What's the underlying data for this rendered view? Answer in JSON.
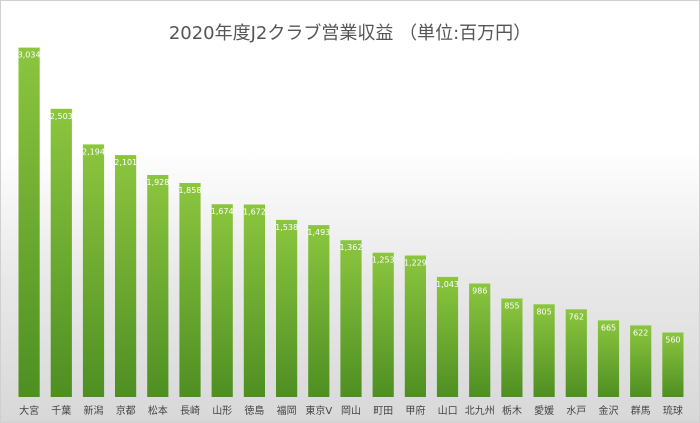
{
  "chart_data": {
    "type": "bar",
    "title": "2020年度J2クラブ営業収益 （単位:百万円）",
    "categories": [
      "大宮",
      "千葉",
      "新潟",
      "京都",
      "松本",
      "長崎",
      "山形",
      "徳島",
      "福岡",
      "東京V",
      "岡山",
      "町田",
      "甲府",
      "山口",
      "北九州",
      "栃木",
      "愛媛",
      "水戸",
      "金沢",
      "群馬",
      "琉球"
    ],
    "values": [
      3034,
      2503,
      2194,
      2101,
      1928,
      1858,
      1674,
      1672,
      1538,
      1493,
      1362,
      1253,
      1229,
      1043,
      986,
      855,
      805,
      762,
      665,
      622,
      560
    ],
    "value_labels": [
      "3,034",
      "2,503",
      "2,194",
      "2,101",
      "1,928",
      "1,858",
      "1,674",
      "1,672",
      "1,538",
      "1,493",
      "1,362",
      "1,253",
      "1,229",
      "1,043",
      "986",
      "855",
      "805",
      "762",
      "665",
      "622",
      "560"
    ],
    "ylim": [
      0,
      3300
    ],
    "grid": false,
    "bar_color_top": "#8cc63f",
    "bar_color_bottom": "#4e8f22"
  }
}
